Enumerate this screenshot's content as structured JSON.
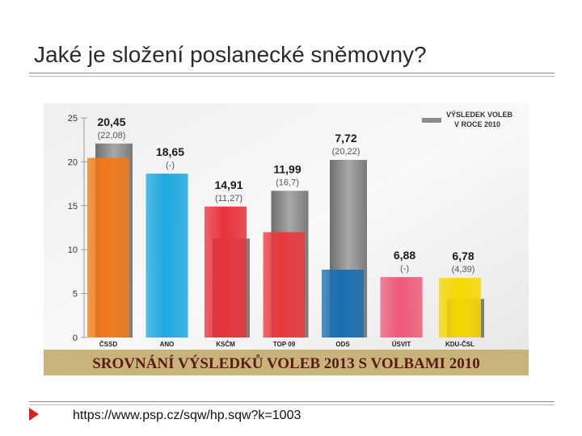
{
  "slide": {
    "title": "Jaké je složení poslanecké sněmovny?",
    "source_url": "https://www.psp.cz/sqw/hp.sqw?k=1003"
  },
  "colors": {
    "banner_bg": "#c8b47a",
    "banner_text": "#5b1a12",
    "prev_bar": "#8c8c8c",
    "label": "#1a1a1a",
    "prev_label": "#555555"
  },
  "chart_data": {
    "type": "bar",
    "banner": "SROVNÁNÍ VÝSLEDKŮ VOLEB 2013 S VOLBAMI 2010",
    "legend": {
      "label_line1": "VÝSLEDEK VOLEB",
      "label_line2": "V ROCE 2010",
      "placement": "top-right"
    },
    "ylim": [
      0,
      25
    ],
    "yticks": [
      "0",
      "5",
      "10",
      "15",
      "20",
      "25"
    ],
    "categories": [
      "ČSSD",
      "ANO",
      "KSČM",
      "TOP 09",
      "ODS",
      "ÚSVIT",
      "KDU-ČSL"
    ],
    "series": [
      {
        "year": 2013,
        "values": [
          20.45,
          18.65,
          14.91,
          11.99,
          7.72,
          6.88,
          6.78
        ],
        "labels": [
          "20,45",
          "18,65",
          "14,91",
          "11,99",
          "7,72",
          "6,88",
          "6,78"
        ],
        "colors": [
          "#f07a1a",
          "#1fa8e0",
          "#e8323a",
          "#e83a3e",
          "#1a6fb0",
          "#ee5a78",
          "#f5d800"
        ]
      },
      {
        "year": 2010,
        "values": [
          22.08,
          0,
          11.27,
          16.7,
          20.22,
          0,
          4.39
        ],
        "labels": [
          "(22,08)",
          "(-)",
          "(11,27)",
          "(16,7)",
          "(20,22)",
          "(-)",
          "(4,39)"
        ],
        "colors": [
          "#8c8c8c",
          "#8c8c8c",
          "#8c8c8c",
          "#8c8c8c",
          "#8c8c8c",
          "#8c8c8c",
          "#8c8c8c"
        ]
      }
    ],
    "grid": false
  }
}
